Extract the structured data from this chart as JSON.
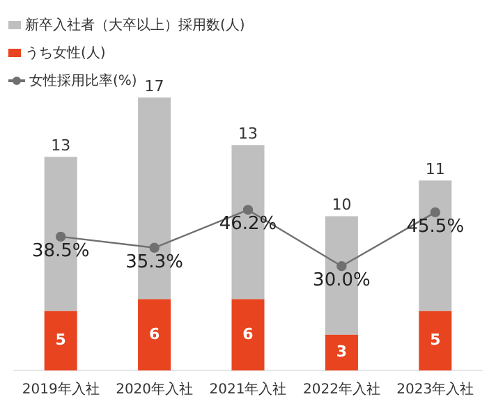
{
  "chart_data": {
    "type": "bar",
    "stacked": true,
    "categories": [
      "2019年入社",
      "2020年入社",
      "2021年入社",
      "2022年入社",
      "2023年入社"
    ],
    "series": [
      {
        "name": "うち女性(人)",
        "color": "#e8441f",
        "values": [
          5,
          6,
          6,
          3,
          5
        ]
      },
      {
        "name": "新卒入社者（大卒以上）採用数(人)",
        "color": "#bfbfbf",
        "values": [
          13,
          17,
          13,
          10,
          11
        ]
      },
      {
        "name": "女性採用比率(%)",
        "type": "line",
        "axis": "y2",
        "color": "#707070",
        "values": [
          38.5,
          35.3,
          46.2,
          30.0,
          45.5
        ],
        "value_labels": [
          "38.5%",
          "35.3%",
          "46.2%",
          "30.0%",
          "45.5%"
        ]
      }
    ],
    "tick_labels": "x",
    "data_labels": true,
    "legend": "top left",
    "marker": "circle",
    "grid": false
  }
}
